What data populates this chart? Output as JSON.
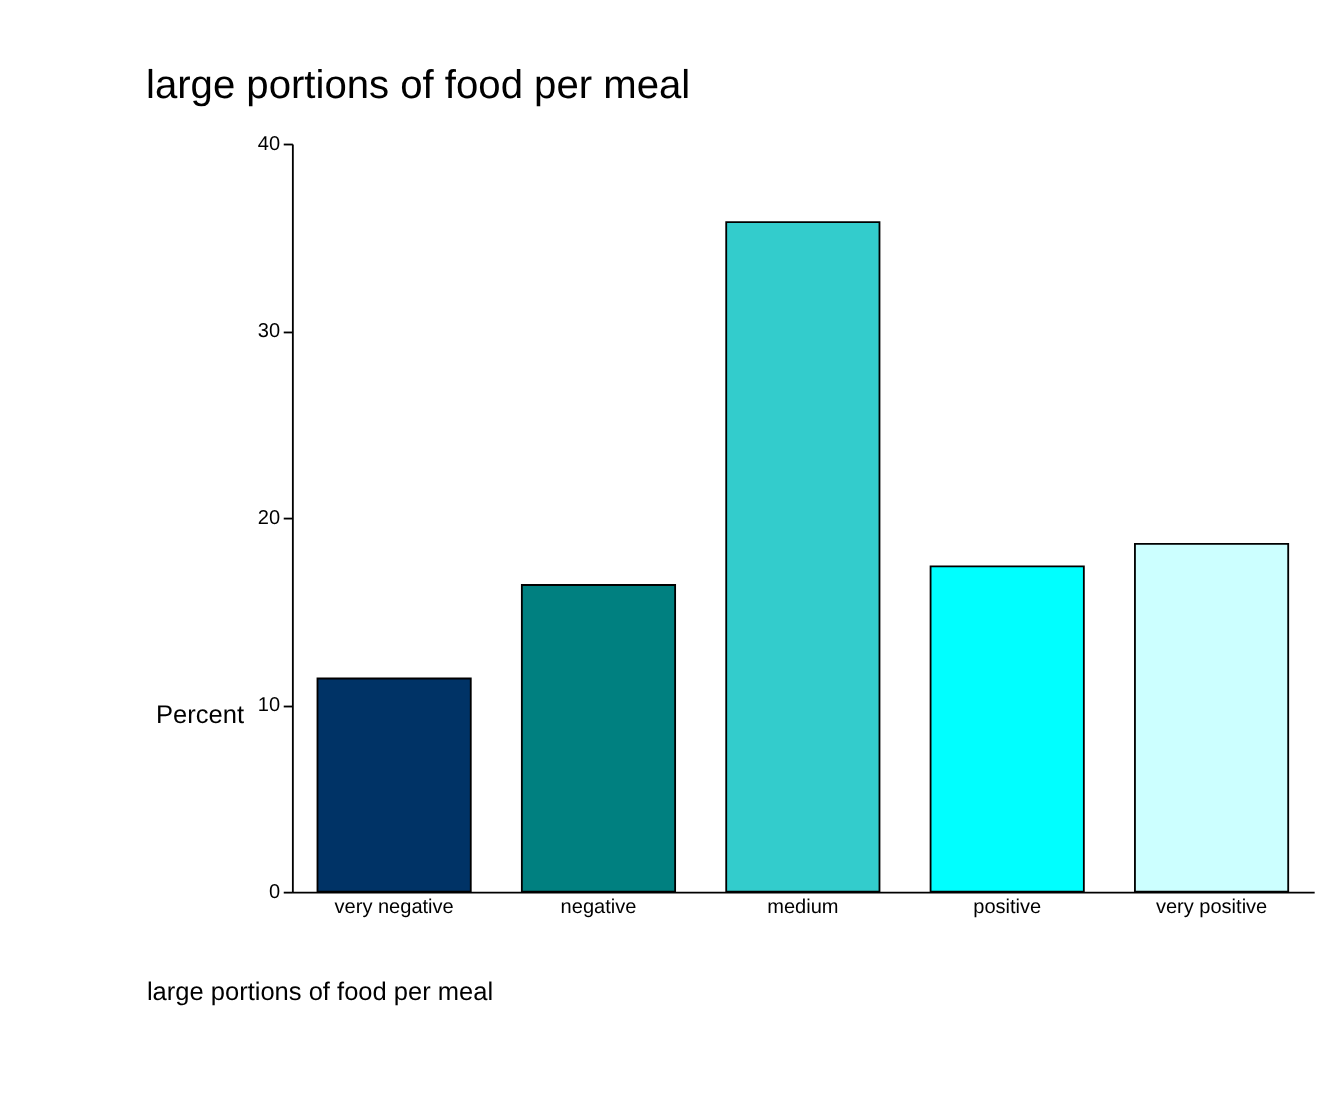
{
  "chart_data": {
    "type": "bar",
    "title": "large portions of food per meal",
    "xlabel": "large portions of food per meal",
    "ylabel": "Percent",
    "categories": [
      "very negative",
      "negative",
      "medium",
      "positive",
      "very positive"
    ],
    "values": [
      11.4,
      16.4,
      35.8,
      17.4,
      18.6
    ],
    "colors": [
      "#003366",
      "#008080",
      "#33cccc",
      "#00ffff",
      "#ccffff"
    ],
    "ylim": [
      0,
      40
    ],
    "yticks": [
      0,
      10,
      20,
      30,
      40
    ],
    "grid": false
  }
}
